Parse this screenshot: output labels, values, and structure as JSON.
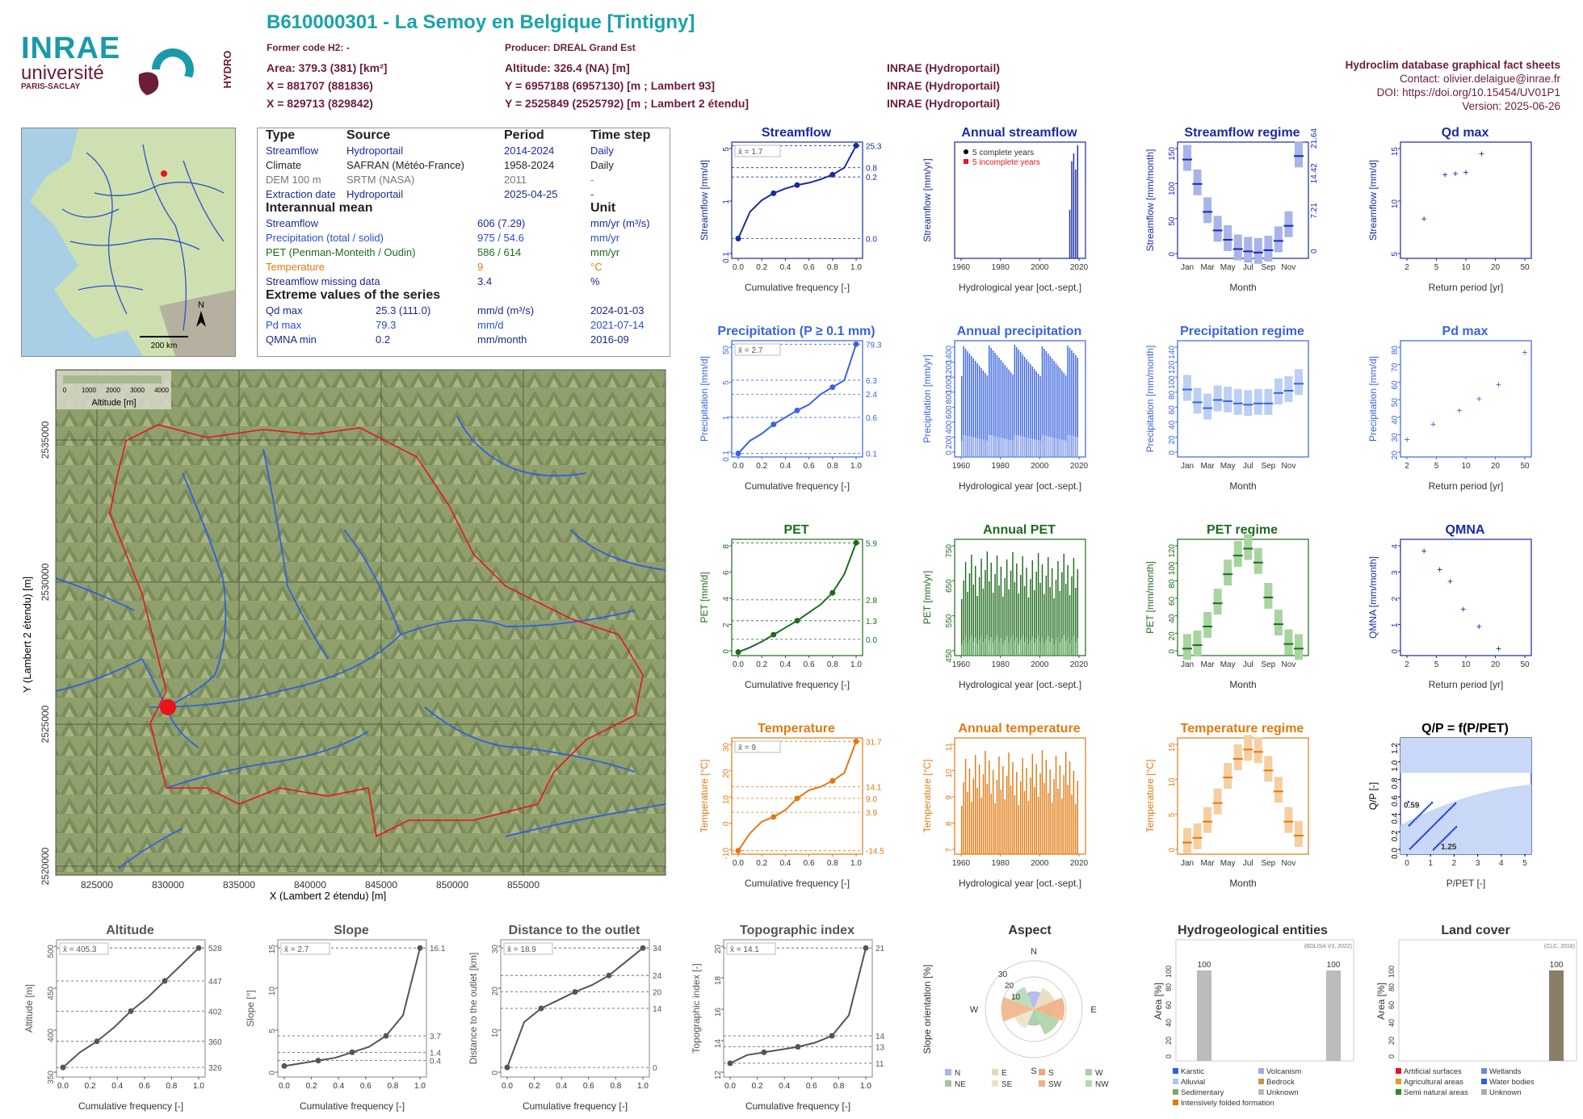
{
  "header": {
    "title": "B610000301 - La Semoy en Belgique [Tintigny]",
    "former_code": "Former code H2: -",
    "producer": "Producer: DREAL Grand Est",
    "area": "Area: 379.3 (381) [km²]",
    "altitude": "Altitude: 326.4 (NA) [m]",
    "x93": "X = 881707 (881836)",
    "y93": "Y = 6957188 (6957130) [m ; Lambert 93]",
    "src1": "INRAE (Hydroportail)",
    "x2": "X = 829713 (829842)",
    "y2": "Y = 2525849 (2525792) [m ; Lambert 2 étendu]",
    "src2": "INRAE (Hydroportail)",
    "src3": "INRAE (Hydroportail)"
  },
  "logos": {
    "inrae": "INRAE",
    "universite": "université",
    "paris_saclay": "PARIS-SACLAY",
    "hydro": "HYDRO"
  },
  "factsheet": {
    "name": "Hydroclim database graphical fact sheets",
    "contact": "Contact: olivier.delaigue@inrae.fr",
    "doi": "DOI: https://doi.org/10.15454/UV01P1",
    "version": "Version: 2025-06-26"
  },
  "info": {
    "headers": [
      "Type",
      "Source",
      "Period",
      "Time step"
    ],
    "sources": [
      {
        "type": "Streamflow",
        "source": "Hydroportail",
        "period": "2014-2024",
        "step": "Daily"
      },
      {
        "type": "Climate",
        "source": "SAFRAN (Météo-France)",
        "period": "1958-2024",
        "step": "Daily"
      },
      {
        "type": "DEM 100 m",
        "source": "SRTM (NASA)",
        "period": "2011",
        "step": "-"
      },
      {
        "type": "Extraction date",
        "source": "Hydroportail",
        "period": "2025-04-25",
        "step": "-"
      }
    ],
    "mean_title": "Interannual mean",
    "unit_title": "Unit",
    "means": [
      {
        "name": "Streamflow",
        "value": "606 (7.29)",
        "unit": "mm/yr (m³/s)"
      },
      {
        "name": "Precipitation (total / solid)",
        "value": "975 / 54.6",
        "unit": "mm/yr"
      },
      {
        "name": "PET (Penman-Monteith / Oudin)",
        "value": "586 / 614",
        "unit": "mm/yr"
      },
      {
        "name": "Temperature",
        "value": "9",
        "unit": "°C"
      },
      {
        "name": "Streamflow missing data",
        "value": "3.4",
        "unit": "%"
      }
    ],
    "extreme_title": "Extreme values of the series",
    "extremes": [
      {
        "name": "Qd max",
        "value": "25.3 (111.0)",
        "unit": "mm/d (m³/s)",
        "date": "2024-01-03"
      },
      {
        "name": "Pd max",
        "value": "79.3",
        "unit": "mm/d",
        "date": "2021-07-14"
      },
      {
        "name": "QMNA min",
        "value": "0.2",
        "unit": "mm/month",
        "date": "2016-09"
      }
    ]
  },
  "minimap": {
    "scale": "200 km",
    "north": "N"
  },
  "map": {
    "legend_title": "Altitude [m]",
    "legend_ticks": [
      "0",
      "1000",
      "2000",
      "3000",
      "4000"
    ],
    "xlabel": "X (Lambert 2 étendu) [m]",
    "ylabel": "Y (Lambert 2 étendu) [m]",
    "xticks": [
      "825000",
      "830000",
      "835000",
      "840000",
      "845000",
      "850000",
      "855000"
    ],
    "yticks": [
      "2520000",
      "2525000",
      "2530000",
      "2535000",
      "2540000"
    ]
  },
  "panels": {
    "streamflow": {
      "title": "Streamflow",
      "ylabel": "Streamflow [mm/d]",
      "xlabel": "Cumulative frequency [-]",
      "mean": "x̄ = 1.7",
      "right": [
        "25.3",
        "0.8",
        "0.2",
        "0.0"
      ],
      "yticks": [
        "0.1",
        "1",
        "5"
      ],
      "xticks": [
        "0.0",
        "0.2",
        "0.4",
        "0.6",
        "0.8",
        "1.0"
      ]
    },
    "annual_streamflow": {
      "title": "Annual streamflow",
      "ylabel": "Streamflow [mm/yr]",
      "xlabel": "Hydrological year [oct.-sept.]",
      "legend": [
        "5 complete years",
        "5 incomplete years"
      ],
      "xticks": [
        "1960",
        "1980",
        "2000",
        "2020"
      ]
    },
    "streamflow_regime": {
      "title": "Streamflow regime",
      "ylabel": "Streamflow [mm/month]",
      "ylabel2": "Streamflow [m³/s]",
      "xlabel": "Month",
      "yticks": [
        "0",
        "50",
        "100",
        "150"
      ],
      "yticks2": [
        "0",
        "7.21",
        "14.42",
        "21.64"
      ],
      "months": [
        "Jan",
        "Mar",
        "May",
        "Jul",
        "Sep",
        "Nov"
      ]
    },
    "qd_max": {
      "title": "Qd max",
      "ylabel": "Streamflow [mm/d]",
      "xlabel": "Return period [yr]",
      "yticks": [
        "5",
        "10",
        "15"
      ],
      "xticks": [
        "2",
        "5",
        "10",
        "20",
        "50"
      ]
    },
    "precip": {
      "title": "Precipitation (P ≥ 0.1 mm)",
      "ylabel": "Precipitation [mm/d]",
      "xlabel": "Cumulative frequency [-]",
      "mean": "x̄ = 2.7",
      "right": [
        "79.3",
        "6.3",
        "2.4",
        "0.6",
        "0.1"
      ],
      "yticks": [
        "0.1",
        "1",
        "5",
        "50"
      ]
    },
    "annual_precip": {
      "title": "Annual precipitation",
      "ylabel": "Precipitation [mm/yr]",
      "xlabel": "Hydrological year [oct.-sept.]",
      "legend": [
        "Total precipitation",
        "Solid precipitation"
      ],
      "yticks": [
        "0",
        "200",
        "400",
        "600",
        "800",
        "1000",
        "1200",
        "1400"
      ],
      "xticks": [
        "1960",
        "1980",
        "2000",
        "2020"
      ]
    },
    "precip_regime": {
      "title": "Precipitation regime",
      "ylabel": "Precipitation [mm/month]",
      "xlabel": "Month",
      "yticks": [
        "0",
        "20",
        "40",
        "60",
        "80",
        "100",
        "120",
        "140"
      ]
    },
    "pd_max": {
      "title": "Pd max",
      "ylabel": "Precipitation [mm/d]",
      "xlabel": "Return period [yr]",
      "yticks": [
        "20",
        "30",
        "40",
        "50",
        "60",
        "70",
        "80"
      ],
      "xticks": [
        "2",
        "5",
        "10",
        "20",
        "50"
      ]
    },
    "pet": {
      "title": "PET",
      "ylabel": "PET [mm/d]",
      "xlabel": "Cumulative frequency [-]",
      "legend": [
        "x̄Oudin = 1.7",
        "x̄Penman-Monteith = 1.6"
      ],
      "right": [
        "5.9",
        "2.8",
        "1.3",
        "0.0"
      ],
      "yticks": [
        "0",
        "2",
        "4",
        "6",
        "8"
      ]
    },
    "annual_pet": {
      "title": "Annual PET",
      "ylabel": "PET [mm/yr]",
      "xlabel": "Hydrological year [oct.-sept.]",
      "yticks": [
        "450",
        "550",
        "650",
        "750"
      ],
      "xticks": [
        "1960",
        "1980",
        "2000",
        "2020"
      ]
    },
    "pet_regime": {
      "title": "PET regime",
      "ylabel": "PET [mm/month]",
      "xlabel": "Month",
      "yticks": [
        "0",
        "20",
        "40",
        "60",
        "80",
        "100",
        "120"
      ]
    },
    "qmna": {
      "title": "QMNA",
      "ylabel": "QMNA [mm/month]",
      "xlabel": "Return period [yr]",
      "yticks": [
        "0",
        "1",
        "2",
        "3",
        "4"
      ],
      "xticks": [
        "2",
        "5",
        "10",
        "20",
        "50"
      ]
    },
    "temp": {
      "title": "Temperature",
      "ylabel": "Temperature [°C]",
      "xlabel": "Cumulative frequency [-]",
      "mean": "x̄ = 9",
      "right": [
        "31.7",
        "14.1",
        "9.0",
        "3.9",
        "-14.5"
      ],
      "yticks": [
        "-10",
        "0",
        "10",
        "20",
        "30"
      ]
    },
    "annual_temp": {
      "title": "Annual temperature",
      "ylabel": "Temperature [°C]",
      "xlabel": "Hydrological year [oct.-sept.]",
      "yticks": [
        "7",
        "8",
        "9",
        "10",
        "11"
      ],
      "xticks": [
        "1960",
        "1980",
        "2000",
        "2020"
      ]
    },
    "temp_regime": {
      "title": "Temperature regime",
      "ylabel": "Temperature [°C]",
      "xlabel": "Month",
      "yticks": [
        "0",
        "5",
        "10",
        "15"
      ]
    },
    "qp": {
      "title": "Q/P = f(P/PET)",
      "ylabel": "Q/P [-]",
      "xlabel": "P/PET [-]",
      "ann1": "0.59",
      "ann2": "1.25",
      "yticks": [
        "0.0",
        "0.2",
        "0.4",
        "0.6",
        "0.8",
        "1.0",
        "1.2"
      ],
      "xticks": [
        "0",
        "1",
        "2",
        "3",
        "4",
        "5"
      ]
    },
    "altitude": {
      "title": "Altitude",
      "ylabel": "Altitude [m]",
      "xlabel": "Cumulative frequency [-]",
      "mean": "x̄ = 405.3",
      "right": [
        "528",
        "447",
        "402",
        "360",
        "326"
      ],
      "yticks": [
        "350",
        "400",
        "450",
        "500"
      ]
    },
    "slope": {
      "title": "Slope",
      "ylabel": "Slope [°]",
      "xlabel": "Cumulative frequency [-]",
      "mean": "x̄ = 2.7",
      "right": [
        "16.1",
        "3.7",
        "1.4",
        "0.4"
      ],
      "yticks": [
        "0",
        "5",
        "10",
        "15"
      ]
    },
    "distance": {
      "title": "Distance to the outlet",
      "ylabel": "Distance to the outlet [km]",
      "xlabel": "Cumulative frequency [-]",
      "mean": "x̄ = 18.9",
      "right": [
        "34",
        "24",
        "20",
        "14",
        "0"
      ],
      "yticks": [
        "0",
        "10",
        "20",
        "30"
      ]
    },
    "topo": {
      "title": "Topographic index",
      "ylabel": "Topographic index [-]",
      "xlabel": "Cumulative frequency [-]",
      "mean": "x̄ = 14.1",
      "right": [
        "21",
        "14",
        "13",
        "11"
      ],
      "yticks": [
        "12",
        "14",
        "16",
        "18",
        "20"
      ]
    },
    "aspect": {
      "title": "Aspect",
      "ylabel": "Slope orientation [%]",
      "dirs": [
        "N",
        "E",
        "S",
        "W"
      ],
      "rings": [
        "10",
        "20",
        "30"
      ],
      "legend": [
        "N",
        "E",
        "S",
        "W",
        "NE",
        "SE",
        "SW",
        "NW"
      ]
    },
    "hydrogeo": {
      "title": "Hydrogeological entities",
      "ylabel": "Area [%]",
      "source": "(BDLISA V3, 2022)",
      "yticks": [
        "0",
        "20",
        "40",
        "60",
        "80",
        "100"
      ],
      "bar_labels": [
        "100",
        "100"
      ],
      "legend": [
        "Karstic",
        "Volcanism",
        "Alluvial",
        "Bedrock",
        "Sedimentary",
        "Unknown",
        "Intensively folded formation"
      ]
    },
    "landcover": {
      "title": "Land cover",
      "ylabel": "Area [%]",
      "source": "(CLC, 2018)",
      "yticks": [
        "0",
        "20",
        "40",
        "60",
        "80",
        "100"
      ],
      "bar_label": "100",
      "legend": [
        "Artificial surfaces",
        "Wetlands",
        "Agricultural areas",
        "Water bodies",
        "Semi natural areas",
        "Unknown"
      ]
    }
  },
  "chart_data": [
    {
      "type": "line",
      "title": "Streamflow",
      "x": [
        0,
        0.25,
        0.5,
        0.75,
        1.0
      ],
      "y": [
        0.0,
        0.2,
        0.8,
        1.7,
        25.3
      ]
    },
    {
      "type": "bar",
      "title": "Annual streamflow",
      "categories": [
        "2018",
        "2019",
        "2020",
        "2021",
        "2022",
        "2023"
      ],
      "values": [
        20,
        120,
        440,
        520,
        490,
        600
      ]
    },
    {
      "type": "bar",
      "title": "Streamflow regime",
      "categories": [
        "Jan",
        "Feb",
        "Mar",
        "Apr",
        "May",
        "Jun",
        "Jul",
        "Aug",
        "Sep",
        "Oct",
        "Nov",
        "Dec"
      ],
      "values": [
        125,
        95,
        58,
        34,
        22,
        10,
        7,
        5,
        8,
        20,
        40,
        130
      ]
    },
    {
      "type": "scatter",
      "title": "Qd max",
      "x": [
        1.2,
        2.1,
        3.1,
        4.3,
        6.5
      ],
      "y": [
        5.5,
        13.8,
        14.2,
        14.5,
        17.5
      ]
    },
    {
      "type": "line",
      "title": "Precipitation (P ≥ 0.1 mm)",
      "x": [
        0,
        0.25,
        0.5,
        0.75,
        1.0
      ],
      "y": [
        0.1,
        0.6,
        2.4,
        6.3,
        79.3
      ]
    },
    {
      "type": "bar",
      "title": "Annual precipitation",
      "categories": [
        "1960",
        "1980",
        "2000",
        "2020"
      ],
      "values": [
        975,
        975,
        975,
        975
      ]
    },
    {
      "type": "bar",
      "title": "Precipitation regime",
      "categories": [
        "Jan",
        "Feb",
        "Mar",
        "Apr",
        "May",
        "Jun",
        "Jul",
        "Aug",
        "Sep",
        "Oct",
        "Nov",
        "Dec"
      ],
      "values": [
        92,
        72,
        64,
        78,
        75,
        73,
        70,
        71,
        72,
        88,
        90,
        100
      ]
    },
    {
      "type": "scatter",
      "title": "Pd max",
      "x": [
        1,
        2,
        5,
        10,
        20,
        50
      ],
      "y": [
        20,
        30,
        38,
        43,
        55,
        80
      ]
    },
    {
      "type": "line",
      "title": "PET",
      "x": [
        0,
        0.25,
        0.5,
        0.75,
        1.0
      ],
      "y": [
        0.0,
        0.5,
        1.3,
        2.8,
        5.9
      ]
    },
    {
      "type": "bar",
      "title": "Annual PET",
      "categories": [
        "1960",
        "1980",
        "2000",
        "2020"
      ],
      "values": [
        586,
        586,
        586,
        586
      ]
    },
    {
      "type": "bar",
      "title": "PET regime",
      "categories": [
        "Jan",
        "Feb",
        "Mar",
        "Apr",
        "May",
        "Jun",
        "Jul",
        "Aug",
        "Sep",
        "Oct",
        "Nov",
        "Dec"
      ],
      "values": [
        7,
        10,
        30,
        55,
        85,
        105,
        112,
        95,
        60,
        32,
        13,
        7
      ]
    },
    {
      "type": "scatter",
      "title": "QMNA",
      "x": [
        1.2,
        1.6,
        2.0,
        2.6,
        3.5,
        5.0
      ],
      "y": [
        4.0,
        3.3,
        2.8,
        1.5,
        0.9,
        0.2
      ]
    },
    {
      "type": "line",
      "title": "Temperature",
      "x": [
        0,
        0.25,
        0.5,
        0.75,
        1.0
      ],
      "y": [
        -14.5,
        3.9,
        9.0,
        14.1,
        31.7
      ]
    },
    {
      "type": "bar",
      "title": "Annual temperature",
      "categories": [
        "1960",
        "1980",
        "2000",
        "2020"
      ],
      "values": [
        9,
        9,
        9,
        9
      ]
    },
    {
      "type": "bar",
      "title": "Temperature regime",
      "categories": [
        "Jan",
        "Feb",
        "Mar",
        "Apr",
        "May",
        "Jun",
        "Jul",
        "Aug",
        "Sep",
        "Oct",
        "Nov",
        "Dec"
      ],
      "values": [
        1.8,
        2.5,
        5,
        8,
        12,
        15,
        17,
        16.5,
        13.5,
        10,
        5,
        3
      ]
    },
    {
      "type": "line",
      "title": "Altitude",
      "x": [
        0,
        0.25,
        0.5,
        0.75,
        1.0
      ],
      "y": [
        326,
        360,
        402,
        447,
        528
      ]
    },
    {
      "type": "line",
      "title": "Slope",
      "x": [
        0,
        0.25,
        0.5,
        0.75,
        1.0
      ],
      "y": [
        0.0,
        0.4,
        1.4,
        3.7,
        16.1
      ]
    },
    {
      "type": "line",
      "title": "Distance to the outlet",
      "x": [
        0,
        0.25,
        0.5,
        0.75,
        1.0
      ],
      "y": [
        0,
        14,
        20,
        24,
        34
      ]
    },
    {
      "type": "line",
      "title": "Topographic index",
      "x": [
        0,
        0.25,
        0.5,
        0.75,
        1.0
      ],
      "y": [
        11,
        13,
        13.5,
        14,
        21
      ]
    },
    {
      "type": "bar",
      "title": "Hydrogeological entities",
      "categories": [
        "Sedimentary",
        "Unknown"
      ],
      "values": [
        100,
        100
      ]
    },
    {
      "type": "bar",
      "title": "Land cover",
      "categories": [
        "Unknown"
      ],
      "values": [
        100
      ]
    }
  ]
}
